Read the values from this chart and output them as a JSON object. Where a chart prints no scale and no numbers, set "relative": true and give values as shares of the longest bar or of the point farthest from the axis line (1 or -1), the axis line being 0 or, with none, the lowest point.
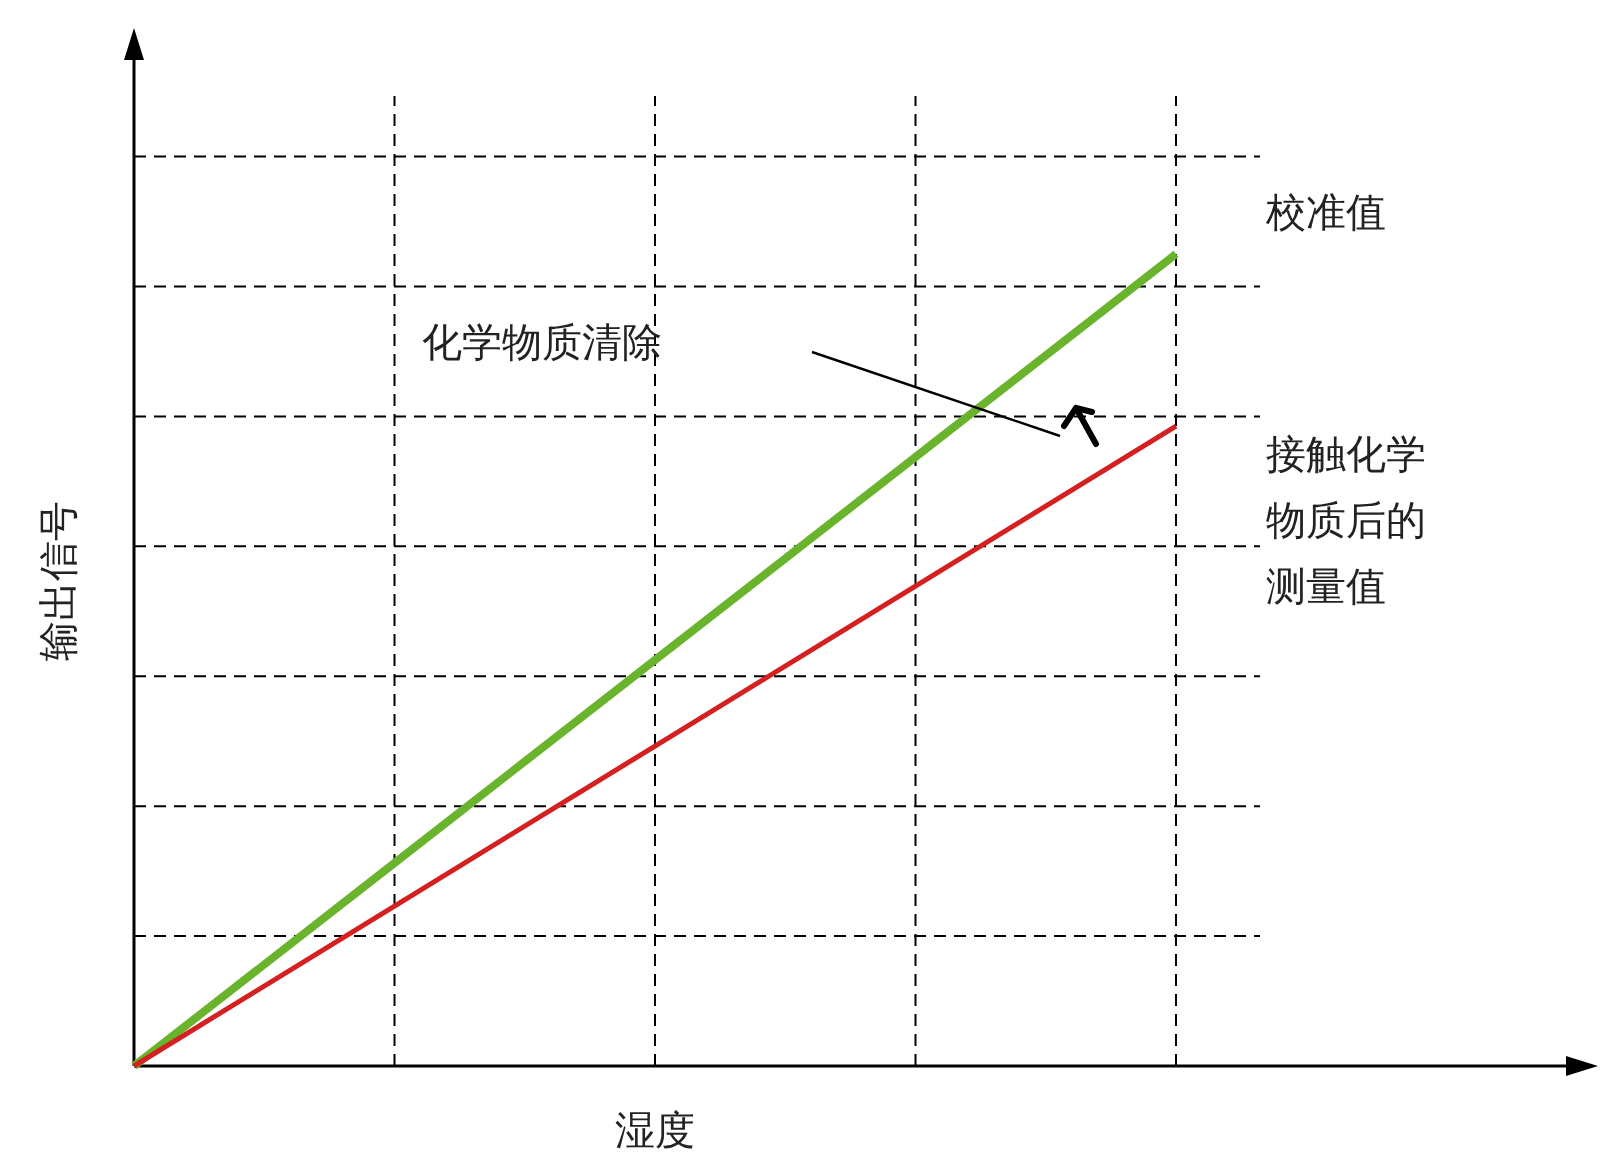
{
  "chart_data": {
    "type": "line",
    "relative": true,
    "xlabel": "湿度",
    "ylabel": "输出信号",
    "categories": [
      null,
      null,
      null,
      null,
      null
    ],
    "series": [
      {
        "name": "校准值",
        "color": "#6ab42d",
        "values": [
          0,
          0.25,
          0.5,
          0.75,
          1
        ]
      },
      {
        "name": "接触化学物质后的测量值",
        "color": "#d42020",
        "values": [
          0,
          0.197,
          0.394,
          0.591,
          0.788
        ]
      }
    ],
    "ref_lines": [
      {
        "axis": "y",
        "value": 0.16,
        "color": "#000000",
        "line_style": "dashed"
      },
      {
        "axis": "y",
        "value": 0.32,
        "color": "#000000",
        "line_style": "dashed"
      },
      {
        "axis": "y",
        "value": 0.48,
        "color": "#000000",
        "line_style": "dashed"
      },
      {
        "axis": "y",
        "value": 0.64,
        "color": "#000000",
        "line_style": "dashed"
      },
      {
        "axis": "y",
        "value": 0.8,
        "color": "#000000",
        "line_style": "dashed"
      },
      {
        "axis": "y",
        "value": 0.96,
        "color": "#000000",
        "line_style": "dashed"
      },
      {
        "axis": "y",
        "value": 1.12,
        "color": "#000000",
        "line_style": "dashed"
      }
    ],
    "annotations": [
      "化学物质清除"
    ],
    "grid": "x",
    "legend": false,
    "line_style": "solid",
    "marker": "none"
  }
}
